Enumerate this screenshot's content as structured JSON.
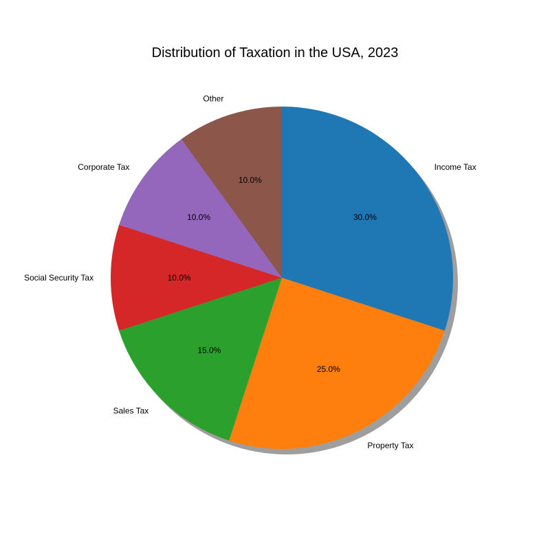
{
  "chart_data": {
    "type": "pie",
    "title": "Distribution of Taxation in the USA, 2023",
    "categories": [
      "Income Tax",
      "Property Tax",
      "Sales Tax",
      "Social Security Tax",
      "Corporate Tax",
      "Other"
    ],
    "values": [
      30,
      25,
      15,
      10,
      10,
      10
    ],
    "percent_labels": [
      "30.0%",
      "25.0%",
      "15.0%",
      "10.0%",
      "10.0%",
      "10.0%"
    ],
    "colors": [
      "#1f77b4",
      "#ff7f0e",
      "#2ca02c",
      "#d62728",
      "#9467bd",
      "#8c564b"
    ],
    "start_angle_deg": 90,
    "direction": "clockwise",
    "shadow": true,
    "legend": "none"
  }
}
